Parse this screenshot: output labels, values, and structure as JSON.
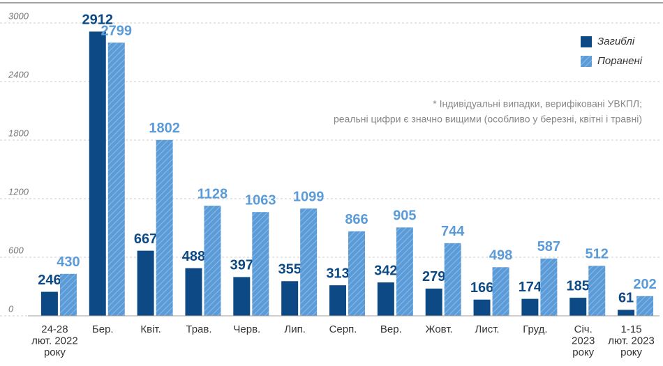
{
  "chart_data": {
    "type": "bar",
    "categories": [
      "24-28\nлют. 2022\nроку",
      "Бер.",
      "Квіт.",
      "Трав.",
      "Черв.",
      "Лип.",
      "Серп.",
      "Вер.",
      "Жовт.",
      "Лист.",
      "Груд.",
      "Січ.\n2023\nроку",
      "1-15\nлют. 2023\nроку"
    ],
    "series": [
      {
        "name": "Загиблі",
        "color": "#0d4a85",
        "values": [
          246,
          2912,
          667,
          488,
          397,
          355,
          313,
          342,
          279,
          166,
          174,
          185,
          61
        ]
      },
      {
        "name": "Поранені",
        "color": "#5b9bd8",
        "hatch": true,
        "values": [
          430,
          2799,
          1802,
          1128,
          1063,
          1099,
          866,
          905,
          744,
          498,
          587,
          512,
          202
        ]
      }
    ],
    "ylim": [
      0,
      3200
    ],
    "yticks": [
      0,
      600,
      1200,
      1800,
      2400,
      3000
    ],
    "grid": true,
    "legend": "top-right",
    "annotations": [
      "* Індивідуальні випадки, верифіковані УВКПЛ;",
      "реальні цифри є значно вищими (особливо у березні, квітні і травні)"
    ]
  }
}
